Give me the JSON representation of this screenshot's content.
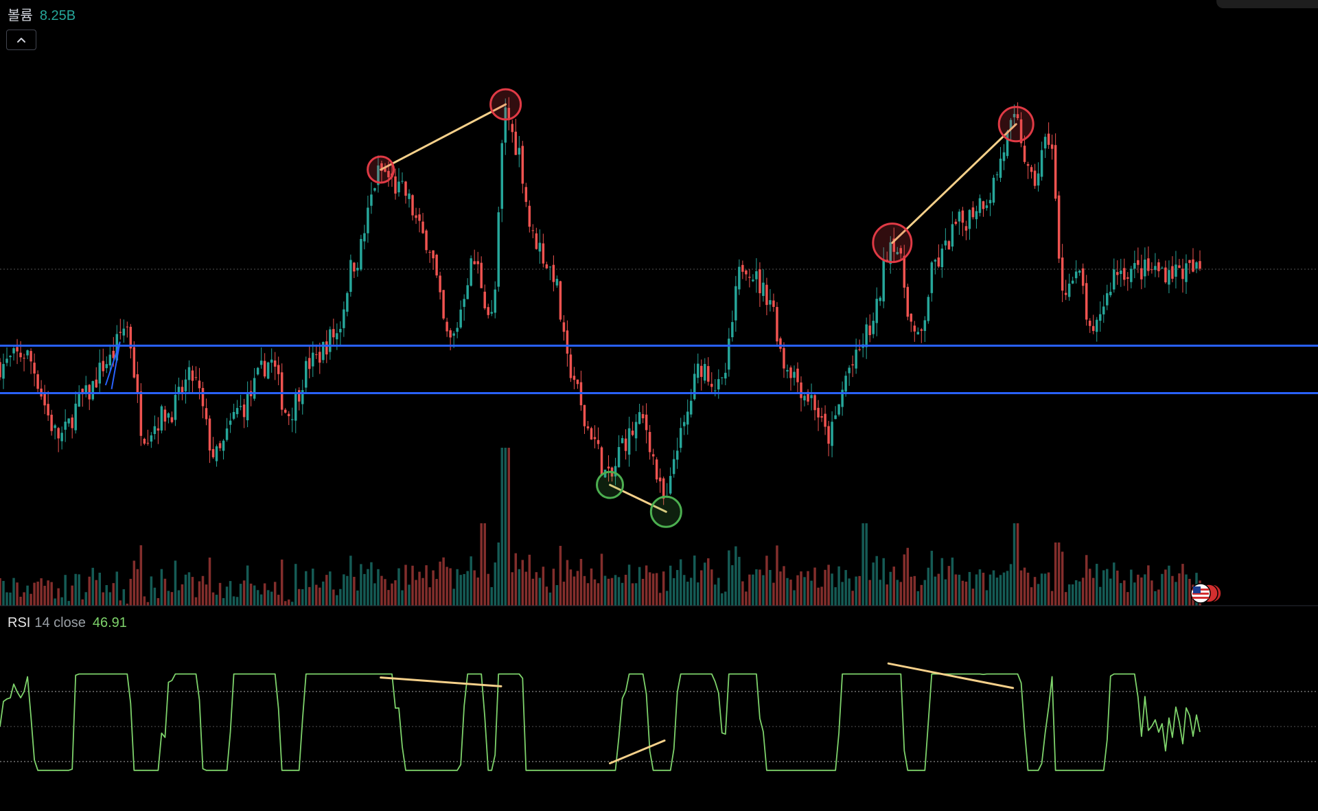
{
  "volume_legend": {
    "label": "볼륨",
    "value": "8.25B"
  },
  "rsi_legend": {
    "label": "RSI",
    "params": "14 close",
    "value": "46.91"
  },
  "collapse_button": {
    "icon": "chevron-up-icon"
  },
  "colors": {
    "up": "#26a69a",
    "down": "#ef5350",
    "support_line": "#2962ff",
    "divergence_line": "#f5d08a",
    "rsi_line": "#7ed36b",
    "marker_top": "#e03a45",
    "marker_bottom": "#4caf50"
  },
  "chart_data": [
    {
      "type": "candlestick",
      "pane": "price",
      "horizontal_lines": [
        0.39,
        0.27
      ],
      "divergence_markers": [
        {
          "kind": "bearish",
          "points": [
            {
              "x": 0.3173,
              "y": 0.835
            },
            {
              "x": 0.4214,
              "y": 1.0
            }
          ]
        },
        {
          "kind": "bearish",
          "points": [
            {
              "x": 0.7436,
              "y": 0.65
            },
            {
              "x": 0.8468,
              "y": 0.95
            }
          ]
        },
        {
          "kind": "bullish",
          "points": [
            {
              "x": 0.5083,
              "y": 0.038
            },
            {
              "x": 0.5551,
              "y": -0.03
            }
          ]
        }
      ],
      "last_close": 0.56
    },
    {
      "type": "bar",
      "pane": "volume",
      "last_value": "8.25B"
    },
    {
      "type": "line",
      "pane": "rsi",
      "levels": [
        70,
        50,
        30
      ],
      "last_value": 46.91,
      "divergence_lines": [
        {
          "points": [
            {
              "x": 0.3173,
              "y": 78
            },
            {
              "x": 0.4176,
              "y": 73
            }
          ]
        },
        {
          "points": [
            {
              "x": 0.7404,
              "y": 86
            },
            {
              "x": 0.8442,
              "y": 72
            }
          ]
        },
        {
          "points": [
            {
              "x": 0.5083,
              "y": 29
            },
            {
              "x": 0.5538,
              "y": 42
            }
          ]
        }
      ]
    }
  ]
}
